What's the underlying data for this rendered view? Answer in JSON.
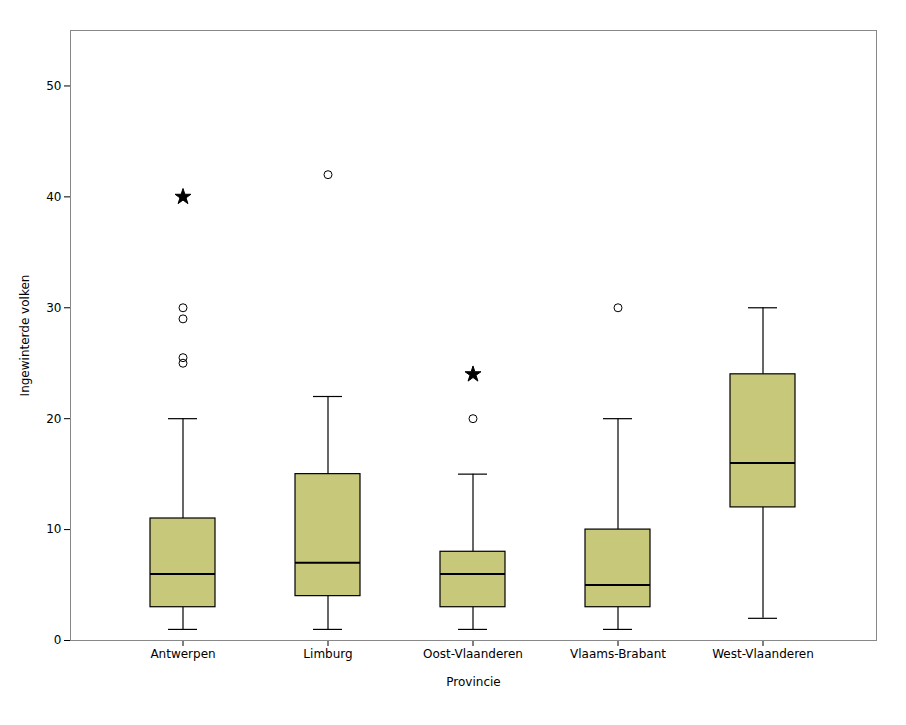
{
  "chart_data": {
    "type": "box",
    "categories": [
      "Antwerpen",
      "Limburg",
      "Oost-Vlaanderen",
      "Vlaams-Brabant",
      "West-Vlaanderen"
    ],
    "med": [
      6,
      7,
      6,
      5,
      16
    ],
    "q1": [
      3,
      4,
      3,
      3,
      12
    ],
    "q3": [
      11,
      15,
      8,
      10,
      24
    ],
    "whislo": [
      1,
      1,
      1,
      1,
      2
    ],
    "whishi": [
      20,
      22,
      15,
      20,
      30
    ],
    "outliers": [
      {
        "marker": "circle",
        "values": [
          [
            25,
            25.5,
            29,
            30
          ],
          [
            42
          ],
          [
            20
          ],
          [
            30
          ],
          []
        ]
      },
      {
        "marker": "star",
        "values": [
          [
            40
          ],
          [],
          [
            24
          ],
          [],
          []
        ]
      }
    ],
    "color": "#c8c87a",
    "xlabel": "Provincie",
    "ylabel": "Ingewinterde volken",
    "ylim": [
      0,
      55
    ],
    "yticks": [
      0,
      10,
      20,
      30,
      40,
      50
    ],
    "grid": false
  }
}
